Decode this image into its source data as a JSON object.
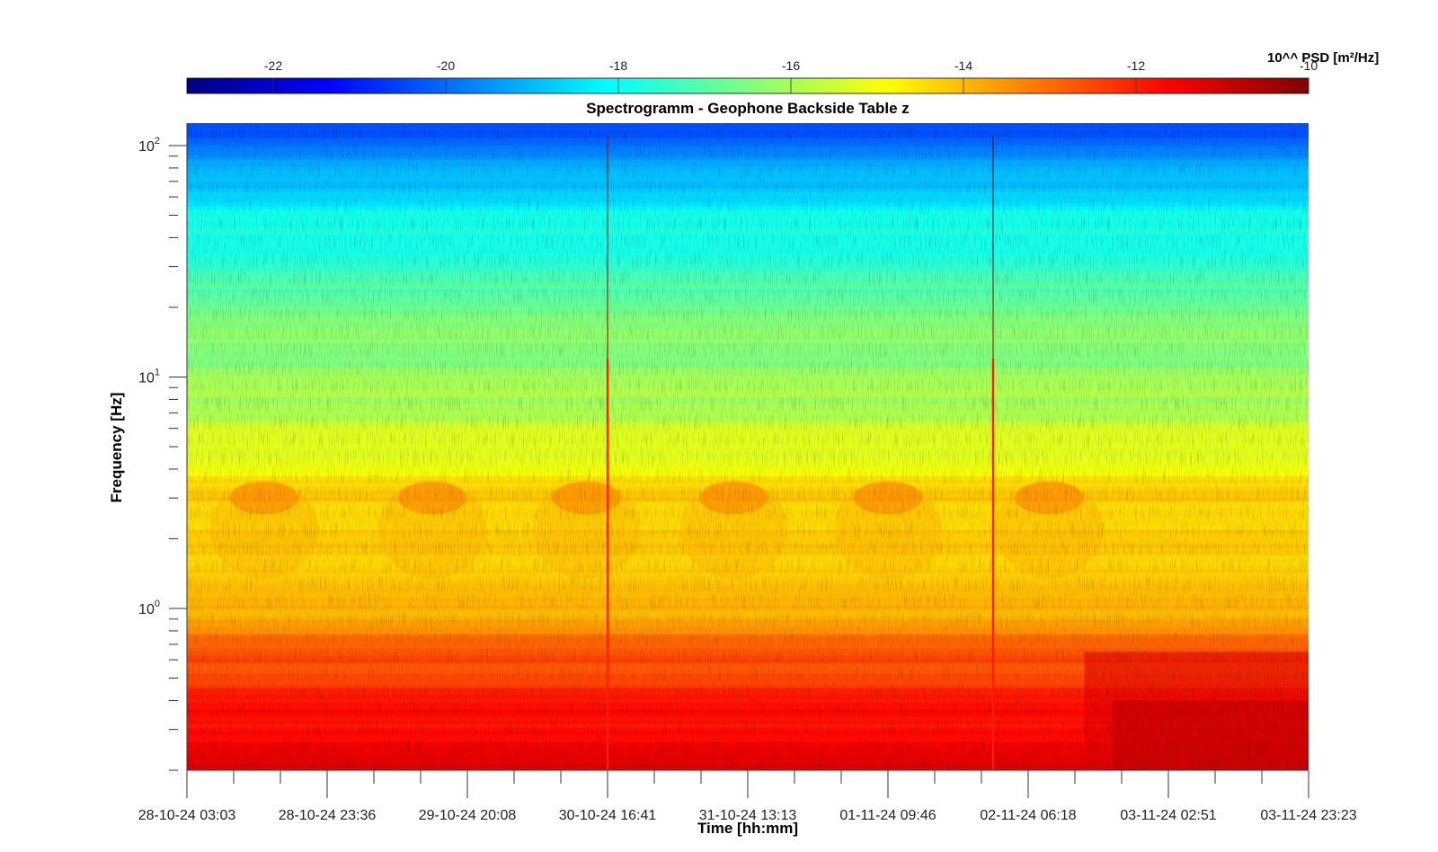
{
  "chart_data": {
    "type": "heatmap",
    "title": "Spectrogramm - Geophone Backside Table z",
    "xlabel": "Time [hh:mm]",
    "ylabel": "Frequency [Hz]",
    "y_scale": "log",
    "ylim": [
      0.2,
      125
    ],
    "y_ticks": [
      {
        "value": 1,
        "base": "10",
        "exp": "0"
      },
      {
        "value": 10,
        "base": "10",
        "exp": "1"
      },
      {
        "value": 100,
        "base": "10",
        "exp": "2"
      }
    ],
    "x_ticks": [
      "28-10-24 03:03",
      "28-10-24 23:36",
      "29-10-24 20:08",
      "30-10-24 16:41",
      "31-10-24 13:13",
      "01-11-24 09:46",
      "02-11-24 06:18",
      "03-11-24 02:51",
      "03-11-24 23:23"
    ],
    "colorbar": {
      "colormap": "jet",
      "label": "10^^ PSD [m²/Hz]",
      "range": [
        -23,
        -10
      ],
      "ticks": [
        -22,
        -20,
        -18,
        -16,
        -14,
        -12,
        -10
      ]
    },
    "psd_profile_log10": [
      {
        "freq_hz": 0.2,
        "value": -11.3
      },
      {
        "freq_hz": 0.4,
        "value": -12.0
      },
      {
        "freq_hz": 0.65,
        "value": -12.8
      },
      {
        "freq_hz": 1.0,
        "value": -14.0
      },
      {
        "freq_hz": 2.0,
        "value": -14.3
      },
      {
        "freq_hz": 3.0,
        "value": -14.2
      },
      {
        "freq_hz": 5.0,
        "value": -15.3
      },
      {
        "freq_hz": 10.0,
        "value": -16.2
      },
      {
        "freq_hz": 20.0,
        "value": -16.6
      },
      {
        "freq_hz": 30.0,
        "value": -17.6
      },
      {
        "freq_hz": 50.0,
        "value": -18.0
      },
      {
        "freq_hz": 100.0,
        "value": -19.8
      },
      {
        "freq_hz": 125.0,
        "value": -20.5
      }
    ],
    "transients": [
      {
        "time": "30-10-24 16:41",
        "approx_value": -12
      },
      {
        "time": "02-11-24 01:10",
        "approx_value": -12
      }
    ]
  }
}
